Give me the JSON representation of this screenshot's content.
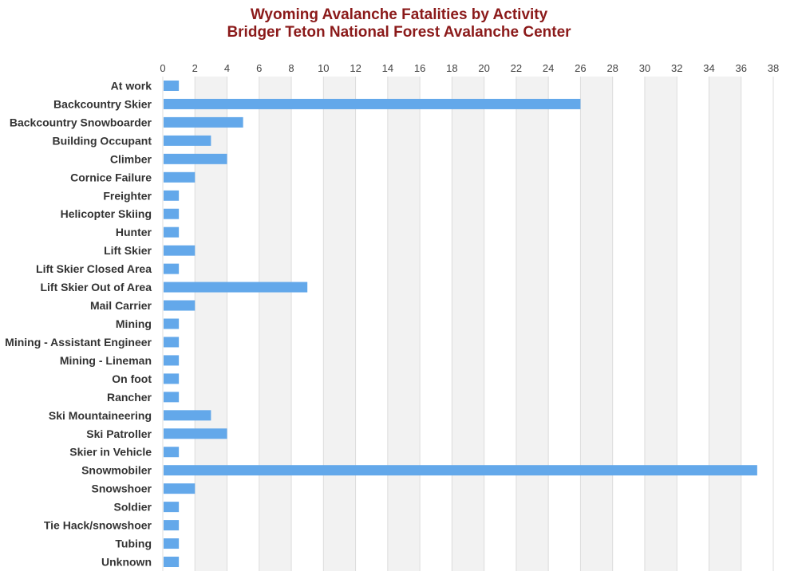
{
  "chart_data": {
    "type": "bar",
    "orientation": "horizontal",
    "title": "Wyoming Avalanche Fatalities by Activity",
    "subtitle": "Bridger Teton National Forest Avalanche Center",
    "xlabel": "",
    "ylabel": "",
    "xlim": [
      0,
      38
    ],
    "ticks": [
      0,
      2,
      4,
      6,
      8,
      10,
      12,
      14,
      16,
      18,
      20,
      22,
      24,
      26,
      28,
      30,
      32,
      34,
      36,
      38
    ],
    "grid": "alternating vertical bands",
    "legend": "none",
    "categories": [
      "At work",
      "Backcountry Skier",
      "Backcountry Snowboarder",
      "Building Occupant",
      "Climber",
      "Cornice Failure",
      "Freighter",
      "Helicopter Skiing",
      "Hunter",
      "Lift Skier",
      "Lift Skier Closed Area",
      "Lift Skier Out of Area",
      "Mail Carrier",
      "Mining",
      "Mining - Assistant Engineer",
      "Mining - Lineman",
      "On foot",
      "Rancher",
      "Ski Mountaineering",
      "Ski Patroller",
      "Skier in Vehicle",
      "Snowmobiler",
      "Snowshoer",
      "Soldier",
      "Tie Hack/snowshoer",
      "Tubing",
      "Unknown"
    ],
    "values": [
      1,
      26,
      5,
      3,
      4,
      2,
      1,
      1,
      1,
      2,
      1,
      9,
      2,
      1,
      1,
      1,
      1,
      1,
      3,
      4,
      1,
      37,
      2,
      1,
      1,
      1,
      1
    ],
    "colors": {
      "bar": "#63a8ea",
      "band": "#f2f2f2",
      "gridline": "#dcdcdc",
      "title": "#8b1a1a",
      "text": "#333333"
    }
  }
}
